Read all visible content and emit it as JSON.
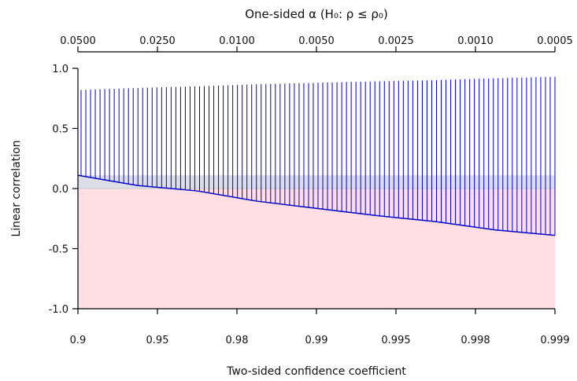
{
  "chart_data": {
    "type": "line",
    "top_title": "One-sided α (H₀: ρ ≤ ρ₀)",
    "xlabel": "Two-sided confidence coefficient",
    "ylabel": "Linear correlation",
    "ylim": [
      -1.0,
      1.0
    ],
    "y_ticks": [
      {
        "value": 1.0,
        "label": "1.0"
      },
      {
        "value": 0.5,
        "label": "0.5"
      },
      {
        "value": 0.0,
        "label": "0.0"
      },
      {
        "value": -0.5,
        "label": "-0.5"
      },
      {
        "value": -1.0,
        "label": "-1.0"
      }
    ],
    "x_ticks": [
      "0.9",
      "0.95",
      "0.98",
      "0.99",
      "0.995",
      "0.998",
      "0.999"
    ],
    "top_ticks": [
      "0.0500",
      "0.0250",
      "0.0100",
      "0.0050",
      "0.0025",
      "0.0010",
      "0.0005"
    ],
    "series": [
      {
        "key": "upper",
        "values": [
          0.82,
          0.837,
          0.85,
          0.868,
          0.88,
          0.892,
          0.902,
          0.918,
          0.93
        ]
      },
      {
        "key": "lower",
        "values": [
          0.11,
          0.025,
          -0.02,
          -0.105,
          -0.165,
          -0.225,
          -0.275,
          -0.345,
          -0.39
        ]
      }
    ],
    "colors": {
      "interval_lines": "#0000cc",
      "negative_region": "#ffdfe3",
      "positive_band": "#d8dae8",
      "zero_line": "#c8c8c8",
      "axis": "#000000"
    }
  }
}
